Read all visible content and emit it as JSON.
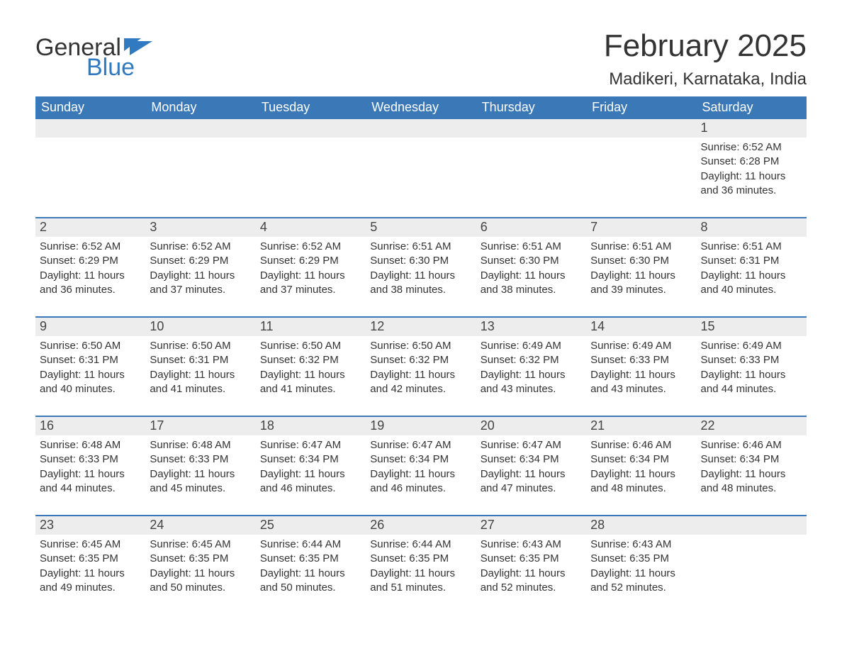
{
  "logo": {
    "word1": "General",
    "word2": "Blue"
  },
  "title": "February 2025",
  "location": "Madikeri, Karnataka, India",
  "colors": {
    "header_bg": "#3a78b8",
    "header_text": "#ffffff",
    "daynum_bg": "#ededed",
    "border": "#3a78b8",
    "logo_blue": "#2f7ac0",
    "text": "#333333",
    "background": "#ffffff"
  },
  "weekdays": [
    "Sunday",
    "Monday",
    "Tuesday",
    "Wednesday",
    "Thursday",
    "Friday",
    "Saturday"
  ],
  "weeks": [
    [
      {
        "n": "",
        "sunrise": "",
        "sunset": "",
        "daylight": ""
      },
      {
        "n": "",
        "sunrise": "",
        "sunset": "",
        "daylight": ""
      },
      {
        "n": "",
        "sunrise": "",
        "sunset": "",
        "daylight": ""
      },
      {
        "n": "",
        "sunrise": "",
        "sunset": "",
        "daylight": ""
      },
      {
        "n": "",
        "sunrise": "",
        "sunset": "",
        "daylight": ""
      },
      {
        "n": "",
        "sunrise": "",
        "sunset": "",
        "daylight": ""
      },
      {
        "n": "1",
        "sunrise": "Sunrise: 6:52 AM",
        "sunset": "Sunset: 6:28 PM",
        "daylight": "Daylight: 11 hours and 36 minutes."
      }
    ],
    [
      {
        "n": "2",
        "sunrise": "Sunrise: 6:52 AM",
        "sunset": "Sunset: 6:29 PM",
        "daylight": "Daylight: 11 hours and 36 minutes."
      },
      {
        "n": "3",
        "sunrise": "Sunrise: 6:52 AM",
        "sunset": "Sunset: 6:29 PM",
        "daylight": "Daylight: 11 hours and 37 minutes."
      },
      {
        "n": "4",
        "sunrise": "Sunrise: 6:52 AM",
        "sunset": "Sunset: 6:29 PM",
        "daylight": "Daylight: 11 hours and 37 minutes."
      },
      {
        "n": "5",
        "sunrise": "Sunrise: 6:51 AM",
        "sunset": "Sunset: 6:30 PM",
        "daylight": "Daylight: 11 hours and 38 minutes."
      },
      {
        "n": "6",
        "sunrise": "Sunrise: 6:51 AM",
        "sunset": "Sunset: 6:30 PM",
        "daylight": "Daylight: 11 hours and 38 minutes."
      },
      {
        "n": "7",
        "sunrise": "Sunrise: 6:51 AM",
        "sunset": "Sunset: 6:30 PM",
        "daylight": "Daylight: 11 hours and 39 minutes."
      },
      {
        "n": "8",
        "sunrise": "Sunrise: 6:51 AM",
        "sunset": "Sunset: 6:31 PM",
        "daylight": "Daylight: 11 hours and 40 minutes."
      }
    ],
    [
      {
        "n": "9",
        "sunrise": "Sunrise: 6:50 AM",
        "sunset": "Sunset: 6:31 PM",
        "daylight": "Daylight: 11 hours and 40 minutes."
      },
      {
        "n": "10",
        "sunrise": "Sunrise: 6:50 AM",
        "sunset": "Sunset: 6:31 PM",
        "daylight": "Daylight: 11 hours and 41 minutes."
      },
      {
        "n": "11",
        "sunrise": "Sunrise: 6:50 AM",
        "sunset": "Sunset: 6:32 PM",
        "daylight": "Daylight: 11 hours and 41 minutes."
      },
      {
        "n": "12",
        "sunrise": "Sunrise: 6:50 AM",
        "sunset": "Sunset: 6:32 PM",
        "daylight": "Daylight: 11 hours and 42 minutes."
      },
      {
        "n": "13",
        "sunrise": "Sunrise: 6:49 AM",
        "sunset": "Sunset: 6:32 PM",
        "daylight": "Daylight: 11 hours and 43 minutes."
      },
      {
        "n": "14",
        "sunrise": "Sunrise: 6:49 AM",
        "sunset": "Sunset: 6:33 PM",
        "daylight": "Daylight: 11 hours and 43 minutes."
      },
      {
        "n": "15",
        "sunrise": "Sunrise: 6:49 AM",
        "sunset": "Sunset: 6:33 PM",
        "daylight": "Daylight: 11 hours and 44 minutes."
      }
    ],
    [
      {
        "n": "16",
        "sunrise": "Sunrise: 6:48 AM",
        "sunset": "Sunset: 6:33 PM",
        "daylight": "Daylight: 11 hours and 44 minutes."
      },
      {
        "n": "17",
        "sunrise": "Sunrise: 6:48 AM",
        "sunset": "Sunset: 6:33 PM",
        "daylight": "Daylight: 11 hours and 45 minutes."
      },
      {
        "n": "18",
        "sunrise": "Sunrise: 6:47 AM",
        "sunset": "Sunset: 6:34 PM",
        "daylight": "Daylight: 11 hours and 46 minutes."
      },
      {
        "n": "19",
        "sunrise": "Sunrise: 6:47 AM",
        "sunset": "Sunset: 6:34 PM",
        "daylight": "Daylight: 11 hours and 46 minutes."
      },
      {
        "n": "20",
        "sunrise": "Sunrise: 6:47 AM",
        "sunset": "Sunset: 6:34 PM",
        "daylight": "Daylight: 11 hours and 47 minutes."
      },
      {
        "n": "21",
        "sunrise": "Sunrise: 6:46 AM",
        "sunset": "Sunset: 6:34 PM",
        "daylight": "Daylight: 11 hours and 48 minutes."
      },
      {
        "n": "22",
        "sunrise": "Sunrise: 6:46 AM",
        "sunset": "Sunset: 6:34 PM",
        "daylight": "Daylight: 11 hours and 48 minutes."
      }
    ],
    [
      {
        "n": "23",
        "sunrise": "Sunrise: 6:45 AM",
        "sunset": "Sunset: 6:35 PM",
        "daylight": "Daylight: 11 hours and 49 minutes."
      },
      {
        "n": "24",
        "sunrise": "Sunrise: 6:45 AM",
        "sunset": "Sunset: 6:35 PM",
        "daylight": "Daylight: 11 hours and 50 minutes."
      },
      {
        "n": "25",
        "sunrise": "Sunrise: 6:44 AM",
        "sunset": "Sunset: 6:35 PM",
        "daylight": "Daylight: 11 hours and 50 minutes."
      },
      {
        "n": "26",
        "sunrise": "Sunrise: 6:44 AM",
        "sunset": "Sunset: 6:35 PM",
        "daylight": "Daylight: 11 hours and 51 minutes."
      },
      {
        "n": "27",
        "sunrise": "Sunrise: 6:43 AM",
        "sunset": "Sunset: 6:35 PM",
        "daylight": "Daylight: 11 hours and 52 minutes."
      },
      {
        "n": "28",
        "sunrise": "Sunrise: 6:43 AM",
        "sunset": "Sunset: 6:35 PM",
        "daylight": "Daylight: 11 hours and 52 minutes."
      },
      {
        "n": "",
        "sunrise": "",
        "sunset": "",
        "daylight": ""
      }
    ]
  ]
}
